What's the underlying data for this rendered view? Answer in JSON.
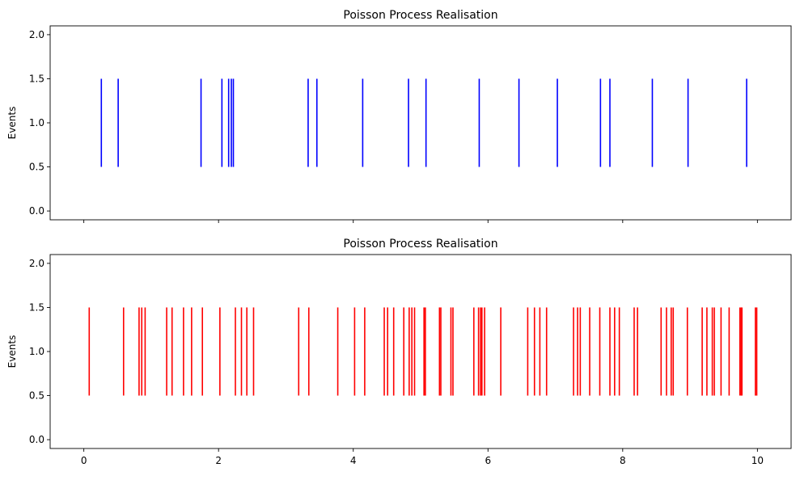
{
  "chart_data": [
    {
      "type": "eventplot",
      "title": "Poisson Process Realisation",
      "xlabel": "",
      "ylabel": "Events",
      "xlim": [
        -0.5,
        10.5
      ],
      "ylim": [
        -0.1,
        2.1
      ],
      "yticks": [
        "0.0",
        "0.5",
        "1.0",
        "1.5",
        "2.0"
      ],
      "xticks": [
        "0",
        "2",
        "4",
        "6",
        "8",
        "10"
      ],
      "show_xtick_labels": false,
      "color": "#0000ff",
      "line_extent": [
        0.5,
        1.5
      ],
      "events": [
        0.26,
        0.51,
        1.74,
        2.05,
        2.15,
        2.19,
        2.22,
        3.33,
        3.46,
        4.14,
        4.82,
        5.08,
        5.87,
        6.46,
        7.03,
        7.67,
        7.81,
        8.44,
        8.97,
        9.84
      ]
    },
    {
      "type": "eventplot",
      "title": "Poisson Process Realisation",
      "xlabel": "",
      "ylabel": "Events",
      "xlim": [
        -0.5,
        10.5
      ],
      "ylim": [
        -0.1,
        2.1
      ],
      "yticks": [
        "0.0",
        "0.5",
        "1.0",
        "1.5",
        "2.0"
      ],
      "xticks": [
        "0",
        "2",
        "4",
        "6",
        "8",
        "10"
      ],
      "show_xtick_labels": true,
      "color": "#ff0000",
      "line_extent": [
        0.5,
        1.5
      ],
      "events": [
        0.08,
        0.59,
        0.82,
        0.86,
        0.91,
        1.23,
        1.31,
        1.48,
        1.6,
        1.76,
        2.02,
        2.25,
        2.34,
        2.42,
        2.52,
        3.19,
        3.34,
        3.77,
        4.02,
        4.17,
        4.46,
        4.51,
        4.6,
        4.75,
        4.83,
        4.87,
        4.91,
        5.05,
        5.07,
        5.28,
        5.3,
        5.45,
        5.48,
        5.79,
        5.86,
        5.89,
        5.91,
        5.95,
        6.19,
        6.59,
        6.69,
        6.77,
        6.87,
        7.27,
        7.33,
        7.37,
        7.51,
        7.66,
        7.81,
        7.88,
        7.95,
        8.17,
        8.22,
        8.57,
        8.65,
        8.72,
        8.75,
        8.96,
        9.18,
        9.25,
        9.33,
        9.36,
        9.46,
        9.58,
        9.74,
        9.76,
        9.77,
        9.97,
        9.99
      ]
    }
  ]
}
